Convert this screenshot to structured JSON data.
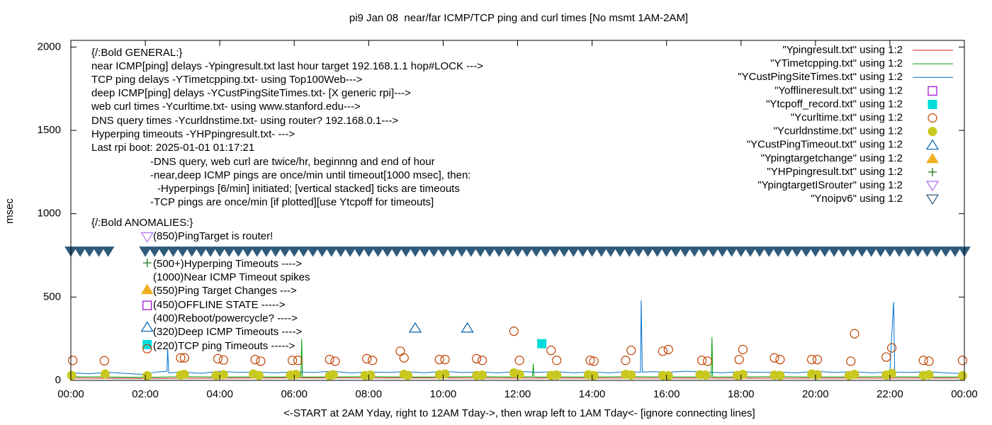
{
  "chart_data": {
    "type": "scatter",
    "title": "pi9 Jan 08  near/far ICMP/TCP ping and curl times [No msmt 1AM-2AM]",
    "x_label": "<-START at 2AM Yday, right to 12AM Tday->, then wrap left to 1AM Tday<- [ignore connecting lines]",
    "y_label": "msec",
    "xlim": [
      0,
      24
    ],
    "ylim": [
      0,
      2040
    ],
    "xticks": [
      {
        "value": 0,
        "label": "00:00"
      },
      {
        "value": 2,
        "label": "02:00"
      },
      {
        "value": 4,
        "label": "04:00"
      },
      {
        "value": 6,
        "label": "06:00"
      },
      {
        "value": 8,
        "label": "08:00"
      },
      {
        "value": 10,
        "label": "10:00"
      },
      {
        "value": 12,
        "label": "12:00"
      },
      {
        "value": 14,
        "label": "14:00"
      },
      {
        "value": 16,
        "label": "16:00"
      },
      {
        "value": 18,
        "label": "18:00"
      },
      {
        "value": 20,
        "label": "20:00"
      },
      {
        "value": 22,
        "label": "22:00"
      },
      {
        "value": 24,
        "label": "00:00"
      }
    ],
    "yticks": [
      0,
      500,
      1000,
      1500,
      2000
    ],
    "legend": "top-right",
    "annotations": [
      "{/:Bold GENERAL:}",
      "near ICMP[ping] delays -Ypingresult.txt last hour target 192.168.1.1 hop#LOCK --->",
      "TCP ping delays -YTimetcpping.txt- using Top100Web--->",
      "deep ICMP[ping] delays -YCustPingSiteTimes.txt- [X generic rpi]--->",
      "web curl times -Ycurltime.txt- using www.stanford.edu--->",
      "DNS query times -Ycurldnstime.txt- using router? 192.168.0.1--->",
      "Hyperping timeouts -YHPpingresult.txt- --->",
      "Last rpi boot: 2025-01-01 01:17:21",
      "-DNS query, web curl are twice/hr, beginnng and end of hour",
      "-near,deep ICMP pings are once/min until timeout[1000 msec], then:",
      "-Hyperpings [6/min] initiated; [vertical stacked] ticks are timeouts",
      "-TCP pings are once/min [if plotted][use Ytcpoff for timeouts]",
      "{/:Bold ANOMALIES:}",
      "(850)PingTarget is router!",
      "(500+)Hyperping Timeouts ---->",
      "(1000)Near ICMP Timeout spikes",
      "(550)Ping Target Changes --->",
      "(450)OFFLINE STATE ----->",
      "(400)Reboot/powercycle? ---->",
      "(320)Deep ICMP Timeouts ---->",
      "(220)TCP ping Timeouts ----->"
    ],
    "series": [
      {
        "name": "\"Ypingresult.txt\" using 1:2",
        "color": "#e51e10",
        "style": "line",
        "x": [
          0,
          2,
          6,
          12,
          18,
          24
        ],
        "values": [
          14,
          12,
          15,
          14,
          13,
          14
        ]
      },
      {
        "name": "\"YTimetcpping.txt\" using 1:2",
        "color": "#009e00",
        "style": "line",
        "x": [
          0,
          1,
          2,
          3,
          4,
          5,
          6,
          6.18,
          6.2,
          6.22,
          7,
          8,
          9,
          10,
          11,
          11.95,
          12.4,
          12.42,
          12.44,
          13,
          14,
          15,
          16,
          17,
          17.2,
          17.22,
          17.24,
          18,
          19,
          20,
          21,
          22,
          23,
          24
        ],
        "values": [
          22,
          20,
          18,
          22,
          20,
          21,
          20,
          22,
          250,
          20,
          21,
          22,
          20,
          21,
          22,
          20,
          22,
          100,
          20,
          21,
          20,
          22,
          21,
          20,
          22,
          260,
          20,
          21,
          22,
          20,
          21,
          22,
          20,
          21
        ]
      },
      {
        "name": "\"YCustPingSiteTimes.txt\" using 1:2",
        "color": "#0072d0",
        "style": "line",
        "x": [
          0,
          0.5,
          1,
          2,
          2.3,
          2.58,
          2.6,
          2.63,
          3,
          3.5,
          4,
          4.5,
          5,
          5.5,
          6,
          6.5,
          7,
          7.5,
          8,
          8.5,
          9,
          9.5,
          10,
          10.5,
          11,
          11.5,
          12,
          12.5,
          13,
          13.5,
          14,
          14.5,
          15,
          15.3,
          15.32,
          15.35,
          15.7,
          16,
          16.5,
          17,
          17.5,
          18,
          18.5,
          19,
          19.5,
          20,
          20.5,
          21,
          21.5,
          22,
          22.05,
          22.1,
          22.13,
          22.5,
          23,
          23.5,
          24
        ],
        "values": [
          45,
          40,
          48,
          35,
          50,
          55,
          190,
          45,
          50,
          42,
          55,
          48,
          50,
          45,
          52,
          47,
          55,
          45,
          50,
          48,
          52,
          46,
          55,
          47,
          50,
          45,
          55,
          48,
          52,
          46,
          50,
          45,
          55,
          48,
          480,
          50,
          52,
          48,
          55,
          50,
          46,
          52,
          48,
          50,
          45,
          55,
          47,
          52,
          46,
          50,
          270,
          470,
          50,
          48,
          52,
          45,
          40
        ]
      },
      {
        "name": "\"Yofflineresult.txt\" using 1:2",
        "color": "#9400d3",
        "style": "points",
        "marker": "open-square",
        "x": [
          2.05
        ],
        "values": [
          450
        ]
      },
      {
        "name": "\"Ytcpoff_record.txt\" using 1:2",
        "color": "#00dcdc",
        "style": "points",
        "marker": "filled-square",
        "x": [
          2.05,
          12.65
        ],
        "values": [
          215,
          220
        ]
      },
      {
        "name": "\"Ycurltime.txt\" using 1:2",
        "color": "#c04000",
        "style": "points",
        "marker": "open-circle",
        "x": [
          0.05,
          0.9,
          2.05,
          2.95,
          3.05,
          3.95,
          4.1,
          4.95,
          5.1,
          5.95,
          6.1,
          6.95,
          7.1,
          7.95,
          8.1,
          8.85,
          8.95,
          9.9,
          10.05,
          10.9,
          11.05,
          11.9,
          12.05,
          12.9,
          13.05,
          13.95,
          14.05,
          14.9,
          15.05,
          15.9,
          16.05,
          16.95,
          17.1,
          17.95,
          18.05,
          18.9,
          19.05,
          19.9,
          20.05,
          20.95,
          21.05,
          21.9,
          22.05,
          22.9,
          23.05,
          23.95
        ],
        "values": [
          120,
          118,
          190,
          135,
          135,
          130,
          122,
          125,
          115,
          120,
          120,
          125,
          115,
          130,
          120,
          175,
          135,
          125,
          125,
          130,
          120,
          295,
          120,
          180,
          120,
          120,
          115,
          120,
          180,
          175,
          185,
          120,
          115,
          125,
          185,
          135,
          125,
          125,
          125,
          115,
          280,
          140,
          195,
          120,
          115,
          120
        ]
      },
      {
        "name": "\"Ycurldnstime.txt\" using 1:2",
        "color": "#c8c820",
        "style": "points",
        "marker": "filled-circle",
        "x": [
          0.02,
          0.92,
          2.05,
          2.95,
          3.05,
          3.9,
          4.1,
          4.9,
          5.05,
          5.9,
          6.05,
          6.95,
          7.05,
          7.9,
          8.05,
          8.95,
          9.05,
          9.9,
          10.05,
          10.9,
          11.05,
          11.9,
          12.05,
          12.9,
          13.05,
          13.9,
          14.05,
          14.9,
          15.05,
          15.9,
          16.05,
          16.9,
          17.05,
          17.9,
          18.05,
          18.9,
          19.05,
          19.9,
          20.05,
          20.9,
          21.05,
          21.9,
          22.05,
          22.9,
          23.05,
          23.95
        ],
        "values": [
          30,
          38,
          28,
          32,
          36,
          30,
          34,
          38,
          30,
          32,
          36,
          28,
          34,
          30,
          32,
          36,
          30,
          34,
          38,
          30,
          32,
          45,
          36,
          30,
          32,
          34,
          30,
          36,
          32,
          30,
          28,
          34,
          32,
          30,
          36,
          32,
          30,
          38,
          34,
          30,
          36,
          32,
          42,
          30,
          34,
          28
        ]
      },
      {
        "name": "\"YCustPingTimeout.txt\" using 1:2",
        "color": "#0060ad",
        "style": "points",
        "marker": "open-triangle",
        "x": [
          2.05,
          9.25,
          10.65
        ],
        "values": [
          320,
          315,
          315
        ]
      },
      {
        "name": "\"Ypingtargetchange\" using 1:2",
        "color": "#f0b020",
        "style": "points",
        "marker": "filled-triangle",
        "x": [
          2.05
        ],
        "values": [
          545
        ]
      },
      {
        "name": "\"YHPpingresult.txt\" using 1:2",
        "color": "#1a7a1a",
        "style": "points",
        "marker": "plus",
        "x": [
          2.05
        ],
        "values": [
          705
        ]
      },
      {
        "name": "\"YpingtargetISrouter\" using 1:2",
        "color": "#b070f0",
        "style": "points",
        "marker": "open-down-triangle",
        "x": [
          2.05
        ],
        "values": [
          860
        ]
      },
      {
        "name": "\"Ynoipv6\" using 1:2",
        "color": "#2e5a7c",
        "style": "points",
        "marker": "open-down-triangle",
        "x": [
          0,
          0.25,
          0.5,
          0.75,
          1,
          2,
          2.25,
          2.5,
          2.75,
          3,
          3.25,
          3.5,
          3.75,
          4,
          4.25,
          4.5,
          4.75,
          5,
          5.25,
          5.5,
          5.75,
          6,
          6.25,
          6.5,
          6.75,
          7,
          7.25,
          7.5,
          7.75,
          8,
          8.25,
          8.5,
          8.75,
          9,
          9.25,
          9.5,
          9.75,
          10,
          10.25,
          10.5,
          10.75,
          11,
          11.25,
          11.5,
          11.75,
          12,
          12.25,
          12.5,
          12.75,
          13,
          13.25,
          13.5,
          13.75,
          14,
          14.25,
          14.5,
          14.75,
          15,
          15.25,
          15.5,
          15.75,
          16,
          16.25,
          16.5,
          16.75,
          17,
          17.25,
          17.5,
          17.75,
          18,
          18.25,
          18.5,
          18.75,
          19,
          19.25,
          19.5,
          19.75,
          20,
          20.25,
          20.5,
          20.75,
          21,
          21.25,
          21.5,
          21.75,
          22,
          22.25,
          22.5,
          22.75,
          23,
          23.25,
          23.5,
          23.75,
          24
        ],
        "values": [
          775,
          775,
          775,
          775,
          775,
          775,
          775,
          775,
          775,
          775,
          775,
          775,
          775,
          775,
          775,
          775,
          775,
          775,
          775,
          775,
          775,
          775,
          775,
          775,
          775,
          775,
          775,
          775,
          775,
          775,
          775,
          775,
          775,
          775,
          775,
          775,
          775,
          775,
          775,
          775,
          775,
          775,
          775,
          775,
          775,
          775,
          775,
          775,
          775,
          775,
          775,
          775,
          775,
          775,
          775,
          775,
          775,
          775,
          775,
          775,
          775,
          775,
          775,
          775,
          775,
          775,
          775,
          775,
          775,
          775,
          775,
          775,
          775,
          775,
          775,
          775,
          775,
          775,
          775,
          775,
          775,
          775,
          775,
          775,
          775,
          775,
          775,
          775,
          775,
          775,
          775,
          775,
          775,
          775
        ]
      }
    ]
  }
}
